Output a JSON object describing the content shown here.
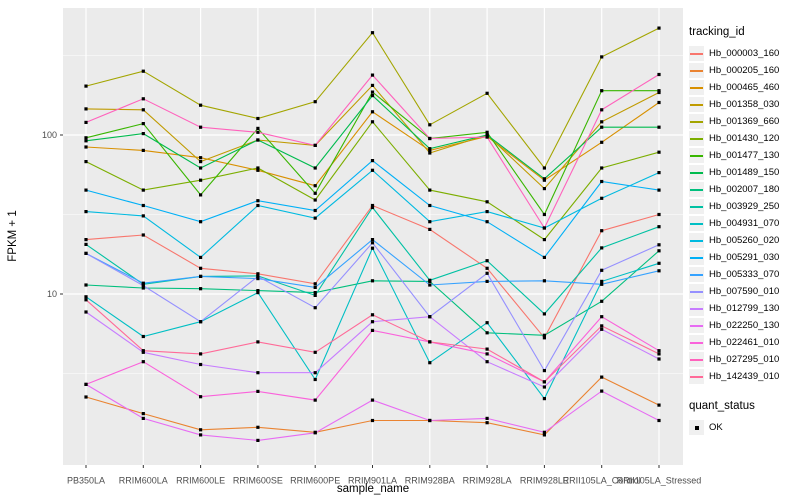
{
  "figure": {
    "background": "#FFFFFF",
    "panel_background": "#EBEBEB",
    "grid_color": "#FFFFFF",
    "tick_label_color": "#4D4D4D",
    "point_color": "#000000"
  },
  "chart_data": {
    "type": "line",
    "title": "",
    "xlabel": "sample_name",
    "ylabel": "FPKM + 1",
    "y_scale": "log10",
    "y_ticks": [
      100,
      10
    ],
    "y_minor_ticks": [
      316.2,
      31.62,
      3.162
    ],
    "ylim": [
      1.1,
      630
    ],
    "grid": true,
    "legend_position": "right",
    "point_shape": "filled-square",
    "categories": [
      "PB350LA",
      "RRIM600LA",
      "RRIM600LE",
      "RRIM600SE",
      "RRIM600PE",
      "RRIM901LA",
      "RRIM928BA",
      "RRIM928LA",
      "RRIM928LE",
      "RRII105LA_Control",
      "RRII105LA_Stressed"
    ],
    "series": [
      {
        "name": "Hb_000003_160",
        "color": "#F8766D",
        "values": [
          22,
          23.5,
          14.5,
          13.4,
          11.6,
          36,
          25.5,
          14.5,
          5.3,
          25,
          31.6
        ]
      },
      {
        "name": "Hb_000205_160",
        "color": "#EA8331",
        "values": [
          2.25,
          1.77,
          1.4,
          1.45,
          1.35,
          1.6,
          1.6,
          1.55,
          1.3,
          3.0,
          2.0
        ]
      },
      {
        "name": "Hb_000465_460",
        "color": "#D89000",
        "values": [
          84,
          80,
          72,
          60,
          48,
          140,
          80,
          98,
          52,
          90,
          160
        ]
      },
      {
        "name": "Hb_001358_030",
        "color": "#C09B00",
        "values": [
          146,
          144,
          68,
          93,
          86,
          205,
          77,
          100,
          46,
          121,
          185
        ]
      },
      {
        "name": "Hb_001369_660",
        "color": "#A3A500",
        "values": [
          203,
          252,
          154,
          127,
          162,
          440,
          116,
          183,
          62,
          310,
          470
        ]
      },
      {
        "name": "Hb_001430_120",
        "color": "#7CAE00",
        "values": [
          68,
          45,
          52,
          62,
          39,
          121,
          45,
          38,
          22,
          62,
          78
        ]
      },
      {
        "name": "Hb_001477_130",
        "color": "#39B600",
        "values": [
          96,
          118,
          42,
          110,
          43,
          186,
          95,
          104,
          31.6,
          190,
          190
        ]
      },
      {
        "name": "Hb_001489_150",
        "color": "#00BB4E",
        "values": [
          92,
          102,
          62,
          93,
          62,
          177,
          82,
          100,
          53,
          112,
          112
        ]
      },
      {
        "name": "Hb_002007_180",
        "color": "#00BF7D",
        "values": [
          11.4,
          10.9,
          10.8,
          10.5,
          10.2,
          12.1,
          12.0,
          5.7,
          5.5,
          9.0,
          18.7
        ]
      },
      {
        "name": "Hb_003929_250",
        "color": "#00C1A3",
        "values": [
          20.5,
          11.5,
          12.9,
          13.0,
          9.8,
          35,
          12.2,
          16.2,
          7.5,
          19.5,
          26.5
        ]
      },
      {
        "name": "Hb_004931_070",
        "color": "#00BFC4",
        "values": [
          9.6,
          5.4,
          6.7,
          10.2,
          2.9,
          19.4,
          3.7,
          6.6,
          2.2,
          12.0,
          15.6
        ]
      },
      {
        "name": "Hb_005260_020",
        "color": "#00BAE0",
        "values": [
          33,
          31,
          17,
          36,
          30,
          60,
          28.5,
          33,
          26,
          40,
          58
        ]
      },
      {
        "name": "Hb_005291_030",
        "color": "#00B0F6",
        "values": [
          45,
          36,
          28.5,
          38.6,
          33.5,
          69,
          36,
          28.5,
          17,
          51,
          45
        ]
      },
      {
        "name": "Hb_005333_070",
        "color": "#35A2FF",
        "values": [
          18,
          11.7,
          12.9,
          12.5,
          11.0,
          22,
          11.4,
          12.0,
          12.1,
          11.5,
          14.0
        ]
      },
      {
        "name": "Hb_007590_010",
        "color": "#9590FF",
        "values": [
          18,
          11.3,
          6.7,
          12.9,
          8.2,
          21,
          7.2,
          13.5,
          3.3,
          14.1,
          20.4
        ]
      },
      {
        "name": "Hb_012799_130",
        "color": "#C77CFF",
        "values": [
          7.7,
          4.3,
          3.6,
          3.2,
          3.2,
          6.7,
          7.2,
          3.75,
          2.6,
          6.0,
          3.9
        ]
      },
      {
        "name": "Hb_022250_130",
        "color": "#E76BF3",
        "values": [
          2.7,
          1.65,
          1.3,
          1.2,
          1.34,
          2.15,
          1.6,
          1.65,
          1.35,
          2.45,
          1.6
        ]
      },
      {
        "name": "Hb_022461_010",
        "color": "#FA62DB",
        "values": [
          2.7,
          3.75,
          2.26,
          2.44,
          2.15,
          5.9,
          5.0,
          4.2,
          2.8,
          7.2,
          4.4
        ]
      },
      {
        "name": "Hb_027295_010",
        "color": "#FF62BC",
        "values": [
          120,
          169,
          112,
          104,
          86,
          238,
          95,
          97,
          26,
          144,
          240
        ]
      },
      {
        "name": "Hb_142439_010",
        "color": "#FF6A98",
        "values": [
          9.2,
          4.4,
          4.2,
          5.0,
          4.3,
          7.4,
          5.0,
          4.5,
          2.8,
          6.3,
          4.2
        ]
      }
    ],
    "legends": [
      {
        "title": "tracking_id",
        "type": "line"
      },
      {
        "title": "quant_status",
        "type": "point",
        "entries": [
          {
            "label": "OK",
            "color": "#000000"
          }
        ]
      }
    ]
  }
}
